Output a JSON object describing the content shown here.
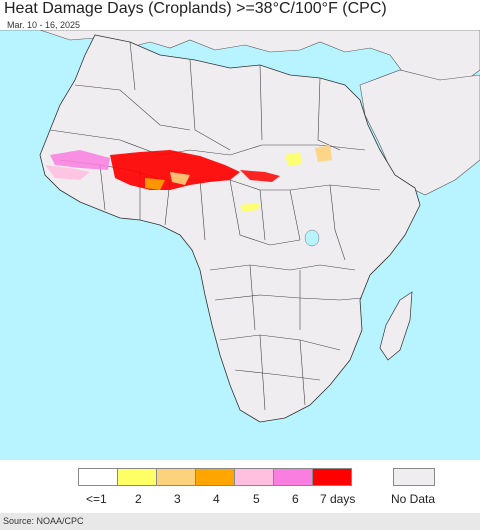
{
  "title": "Heat Damage Days (Croplands) >=38°C/100°F (CPC)",
  "subtitle": "Mar. 10 - 16, 2025",
  "legend": {
    "items": [
      {
        "label": "<=1",
        "color": "#ffffff"
      },
      {
        "label": "2",
        "color": "#ffff66"
      },
      {
        "label": "3",
        "color": "#fdd27d"
      },
      {
        "label": "4",
        "color": "#ffa500"
      },
      {
        "label": "5",
        "color": "#ffc0e0"
      },
      {
        "label": "6",
        "color": "#f97ee0"
      },
      {
        "label": "7 days",
        "color": "#ff0000"
      }
    ],
    "no_data": {
      "label": "No Data",
      "color": "#efedf0"
    }
  },
  "source": "Source: NOAA/CPC",
  "colors": {
    "ocean": "#b8f4ff",
    "land_no_data": "#efedf0",
    "border": "#333333"
  }
}
